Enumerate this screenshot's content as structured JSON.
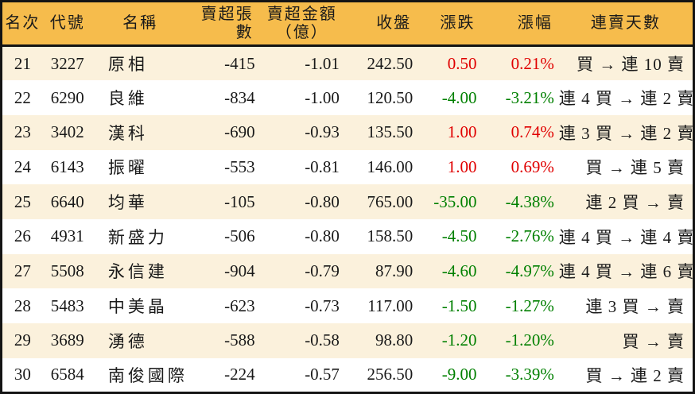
{
  "colors": {
    "header_bg": "#F6BC4C",
    "row_alt_bg": "#FBF1DC",
    "row_bg": "#FFFFFF",
    "up": "#E00000",
    "down": "#008000",
    "border": "#141414",
    "text": "#1A1A1A"
  },
  "chart_data": {
    "type": "table",
    "columns": [
      {
        "key": "rank",
        "label": "名次"
      },
      {
        "key": "code",
        "label": "代號"
      },
      {
        "key": "name",
        "label": "名稱"
      },
      {
        "key": "sell_volume",
        "label": "賣超張數"
      },
      {
        "key": "sell_amount",
        "label": "賣超金額",
        "label_line2": "（億）"
      },
      {
        "key": "close",
        "label": "收盤"
      },
      {
        "key": "change",
        "label": "漲跌"
      },
      {
        "key": "change_pct",
        "label": "漲幅"
      },
      {
        "key": "streak",
        "label": "連賣天數"
      }
    ],
    "rows": [
      {
        "rank": "21",
        "code": "3227",
        "name": "原相",
        "sell_volume": "-415",
        "sell_amount": "-1.01",
        "close": "242.50",
        "change": "0.50",
        "change_pct": "0.21%",
        "streak": "買 → 連 10 賣",
        "trend": "up"
      },
      {
        "rank": "22",
        "code": "6290",
        "name": "良維",
        "sell_volume": "-834",
        "sell_amount": "-1.00",
        "close": "120.50",
        "change": "-4.00",
        "change_pct": "-3.21%",
        "streak": "連 4 買 → 連 2 賣",
        "trend": "down"
      },
      {
        "rank": "23",
        "code": "3402",
        "name": "漢科",
        "sell_volume": "-690",
        "sell_amount": "-0.93",
        "close": "135.50",
        "change": "1.00",
        "change_pct": "0.74%",
        "streak": "連 3 買 → 連 2 賣",
        "trend": "up"
      },
      {
        "rank": "24",
        "code": "6143",
        "name": "振曜",
        "sell_volume": "-553",
        "sell_amount": "-0.81",
        "close": "146.00",
        "change": "1.00",
        "change_pct": "0.69%",
        "streak": "買 → 連 5 賣",
        "trend": "up"
      },
      {
        "rank": "25",
        "code": "6640",
        "name": "均華",
        "sell_volume": "-105",
        "sell_amount": "-0.80",
        "close": "765.00",
        "change": "-35.00",
        "change_pct": "-4.38%",
        "streak": "連 2 買 → 賣",
        "trend": "down"
      },
      {
        "rank": "26",
        "code": "4931",
        "name": "新盛力",
        "sell_volume": "-506",
        "sell_amount": "-0.80",
        "close": "158.50",
        "change": "-4.50",
        "change_pct": "-2.76%",
        "streak": "連 4 買 → 連 4 賣",
        "trend": "down"
      },
      {
        "rank": "27",
        "code": "5508",
        "name": "永信建",
        "sell_volume": "-904",
        "sell_amount": "-0.79",
        "close": "87.90",
        "change": "-4.60",
        "change_pct": "-4.97%",
        "streak": "連 4 買 → 連 6 賣",
        "trend": "down"
      },
      {
        "rank": "28",
        "code": "5483",
        "name": "中美晶",
        "sell_volume": "-623",
        "sell_amount": "-0.73",
        "close": "117.00",
        "change": "-1.50",
        "change_pct": "-1.27%",
        "streak": "連 3 買 → 賣",
        "trend": "down"
      },
      {
        "rank": "29",
        "code": "3689",
        "name": "湧德",
        "sell_volume": "-588",
        "sell_amount": "-0.58",
        "close": "98.80",
        "change": "-1.20",
        "change_pct": "-1.20%",
        "streak": "買 → 賣",
        "trend": "down"
      },
      {
        "rank": "30",
        "code": "6584",
        "name": "南俊國際",
        "sell_volume": "-224",
        "sell_amount": "-0.57",
        "close": "256.50",
        "change": "-9.00",
        "change_pct": "-3.39%",
        "streak": "買 → 連 2 賣",
        "trend": "down"
      }
    ]
  }
}
